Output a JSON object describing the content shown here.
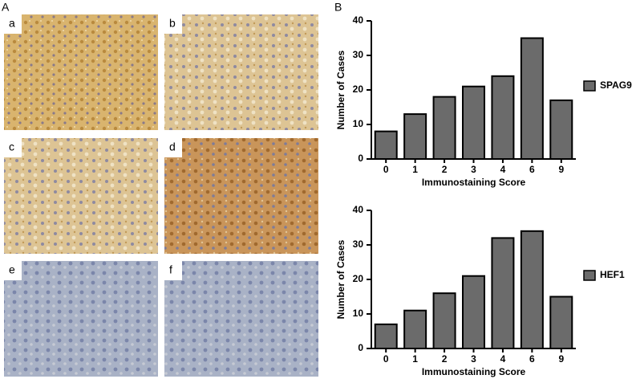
{
  "figure": {
    "left_label": "A",
    "right_label": "B",
    "panel_labels": [
      "a",
      "b",
      "c",
      "d",
      "e",
      "f"
    ]
  },
  "chart_data": [
    {
      "type": "bar",
      "xlabel": "Immunostaining Score",
      "ylabel": "Number of Cases",
      "categories": [
        "0",
        "1",
        "2",
        "3",
        "4",
        "6",
        "9"
      ],
      "series": [
        {
          "name": "SPAG9",
          "color": "#6b6b6b",
          "values": [
            8,
            13,
            18,
            21,
            24,
            35,
            17
          ]
        }
      ],
      "ylim": [
        0,
        40
      ],
      "yticks": [
        0,
        10,
        20,
        30,
        40
      ],
      "grid": false,
      "legend": "right"
    },
    {
      "type": "bar",
      "xlabel": "Immunostaining Score",
      "ylabel": "Number of Cases",
      "categories": [
        "0",
        "1",
        "2",
        "3",
        "4",
        "6",
        "9"
      ],
      "series": [
        {
          "name": "HEF1",
          "color": "#6b6b6b",
          "values": [
            7,
            11,
            16,
            21,
            32,
            34,
            15
          ]
        }
      ],
      "ylim": [
        0,
        40
      ],
      "yticks": [
        0,
        10,
        20,
        30,
        40
      ],
      "grid": false,
      "legend": "right"
    }
  ]
}
